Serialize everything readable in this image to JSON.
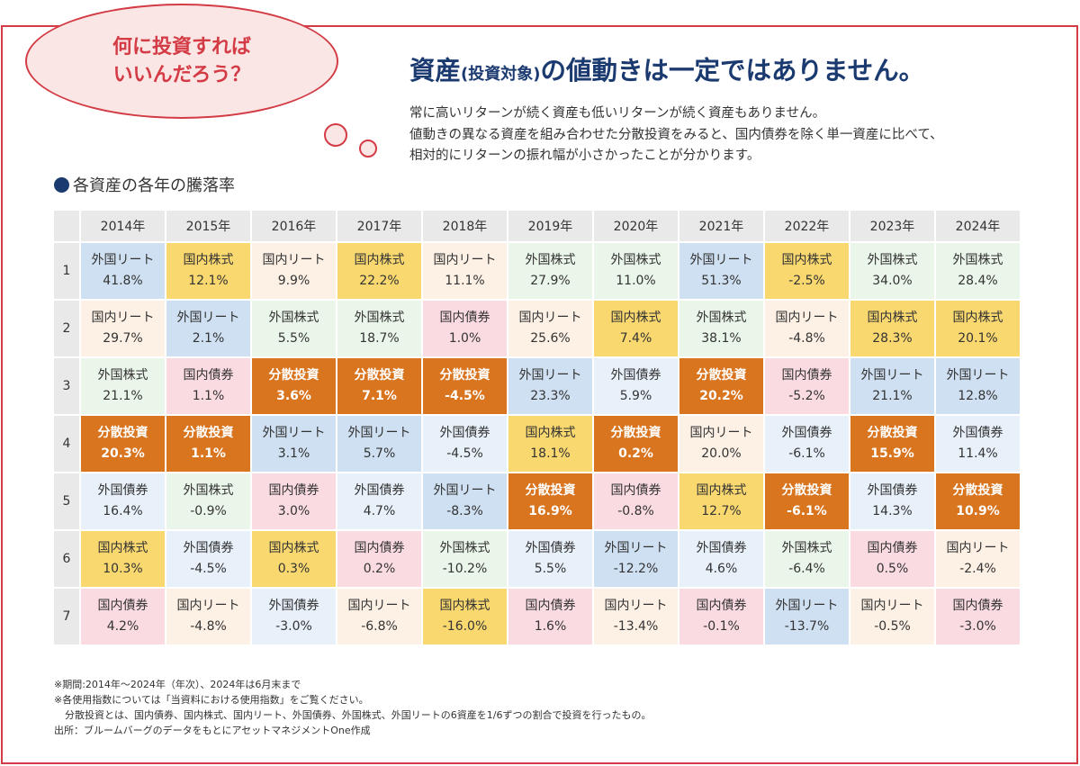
{
  "bubble": {
    "text": "何に投資すれば\nいいんだろう？"
  },
  "headline": {
    "part1": "資産",
    "part2": "(投資対象)",
    "part3": "の値動きは一定ではありません。"
  },
  "description": [
    "常に高いリターンが続く資産も低いリターンが続く資産もありません。",
    "値動きの異なる資産を組み合わせた分散投資をみると、国内債券を除く単一資産に比べて、",
    "相対的にリターンの振れ幅が小さかったことが分かります。"
  ],
  "section_title": "各資産の各年の騰落率",
  "colors": {
    "国内株式": "#f9d870",
    "国内リート": "#fdf1e5",
    "国内債券": "#fadbe1",
    "外国リート": "#cfe0f2",
    "外国株式": "#ebf6ea",
    "外国債券": "#e8f1fa",
    "分散投資": "#d9741f"
  },
  "table": {
    "years": [
      "2014年",
      "2015年",
      "2016年",
      "2017年",
      "2018年",
      "2019年",
      "2020年",
      "2021年",
      "2022年",
      "2023年",
      "2024年"
    ],
    "ranks": [
      "1",
      "2",
      "3",
      "4",
      "5",
      "6",
      "7"
    ],
    "rows": [
      [
        [
          "外国リート",
          "41.8%"
        ],
        [
          "国内株式",
          "12.1%"
        ],
        [
          "国内リート",
          "9.9%"
        ],
        [
          "国内株式",
          "22.2%"
        ],
        [
          "国内リート",
          "11.1%"
        ],
        [
          "外国株式",
          "27.9%"
        ],
        [
          "外国株式",
          "11.0%"
        ],
        [
          "外国リート",
          "51.3%"
        ],
        [
          "国内株式",
          "-2.5%"
        ],
        [
          "外国株式",
          "34.0%"
        ],
        [
          "外国株式",
          "28.4%"
        ]
      ],
      [
        [
          "国内リート",
          "29.7%"
        ],
        [
          "外国リート",
          "2.1%"
        ],
        [
          "外国株式",
          "5.5%"
        ],
        [
          "外国株式",
          "18.7%"
        ],
        [
          "国内債券",
          "1.0%"
        ],
        [
          "国内リート",
          "25.6%"
        ],
        [
          "国内株式",
          "7.4%"
        ],
        [
          "外国株式",
          "38.1%"
        ],
        [
          "国内リート",
          "-4.8%"
        ],
        [
          "国内株式",
          "28.3%"
        ],
        [
          "国内株式",
          "20.1%"
        ]
      ],
      [
        [
          "外国株式",
          "21.1%"
        ],
        [
          "国内債券",
          "1.1%"
        ],
        [
          "分散投資",
          "3.6%"
        ],
        [
          "分散投資",
          "7.1%"
        ],
        [
          "分散投資",
          "-4.5%"
        ],
        [
          "外国リート",
          "23.3%"
        ],
        [
          "外国債券",
          "5.9%"
        ],
        [
          "分散投資",
          "20.2%"
        ],
        [
          "国内債券",
          "-5.2%"
        ],
        [
          "外国リート",
          "21.1%"
        ],
        [
          "外国リート",
          "12.8%"
        ]
      ],
      [
        [
          "分散投資",
          "20.3%"
        ],
        [
          "分散投資",
          "1.1%"
        ],
        [
          "外国リート",
          "3.1%"
        ],
        [
          "外国リート",
          "5.7%"
        ],
        [
          "外国債券",
          "-4.5%"
        ],
        [
          "国内株式",
          "18.1%"
        ],
        [
          "分散投資",
          "0.2%"
        ],
        [
          "国内リート",
          "20.0%"
        ],
        [
          "外国債券",
          "-6.1%"
        ],
        [
          "分散投資",
          "15.9%"
        ],
        [
          "外国債券",
          "11.4%"
        ]
      ],
      [
        [
          "外国債券",
          "16.4%"
        ],
        [
          "外国株式",
          "-0.9%"
        ],
        [
          "国内債券",
          "3.0%"
        ],
        [
          "外国債券",
          "4.7%"
        ],
        [
          "外国リート",
          "-8.3%"
        ],
        [
          "分散投資",
          "16.9%"
        ],
        [
          "国内債券",
          "-0.8%"
        ],
        [
          "国内株式",
          "12.7%"
        ],
        [
          "分散投資",
          "-6.1%"
        ],
        [
          "外国債券",
          "14.3%"
        ],
        [
          "分散投資",
          "10.9%"
        ]
      ],
      [
        [
          "国内株式",
          "10.3%"
        ],
        [
          "外国債券",
          "-4.5%"
        ],
        [
          "国内株式",
          "0.3%"
        ],
        [
          "国内債券",
          "0.2%"
        ],
        [
          "外国株式",
          "-10.2%"
        ],
        [
          "外国債券",
          "5.5%"
        ],
        [
          "外国リート",
          "-12.2%"
        ],
        [
          "外国債券",
          "4.6%"
        ],
        [
          "外国株式",
          "-6.4%"
        ],
        [
          "国内債券",
          "0.5%"
        ],
        [
          "国内リート",
          "-2.4%"
        ]
      ],
      [
        [
          "国内債券",
          "4.2%"
        ],
        [
          "国内リート",
          "-4.8%"
        ],
        [
          "外国債券",
          "-3.0%"
        ],
        [
          "国内リート",
          "-6.8%"
        ],
        [
          "国内株式",
          "-16.0%"
        ],
        [
          "国内債券",
          "1.6%"
        ],
        [
          "国内リート",
          "-13.4%"
        ],
        [
          "国内債券",
          "-0.1%"
        ],
        [
          "外国リート",
          "-13.7%"
        ],
        [
          "国内リート",
          "-0.5%"
        ],
        [
          "国内債券",
          "-3.0%"
        ]
      ]
    ]
  },
  "notes": [
    "※期間:2014年～2024年（年次）、2024年は6月末まで",
    "※各使用指数については「当資料における使用指数」をご覧ください。",
    "分散投資とは、国内債券、国内株式、国内リート、外国債券、外国株式、外国リートの6資産を1/6ずつの割合で投資を行ったもの。",
    "出所：ブルームバーグのデータをもとにアセットマネジメントOne作成"
  ]
}
